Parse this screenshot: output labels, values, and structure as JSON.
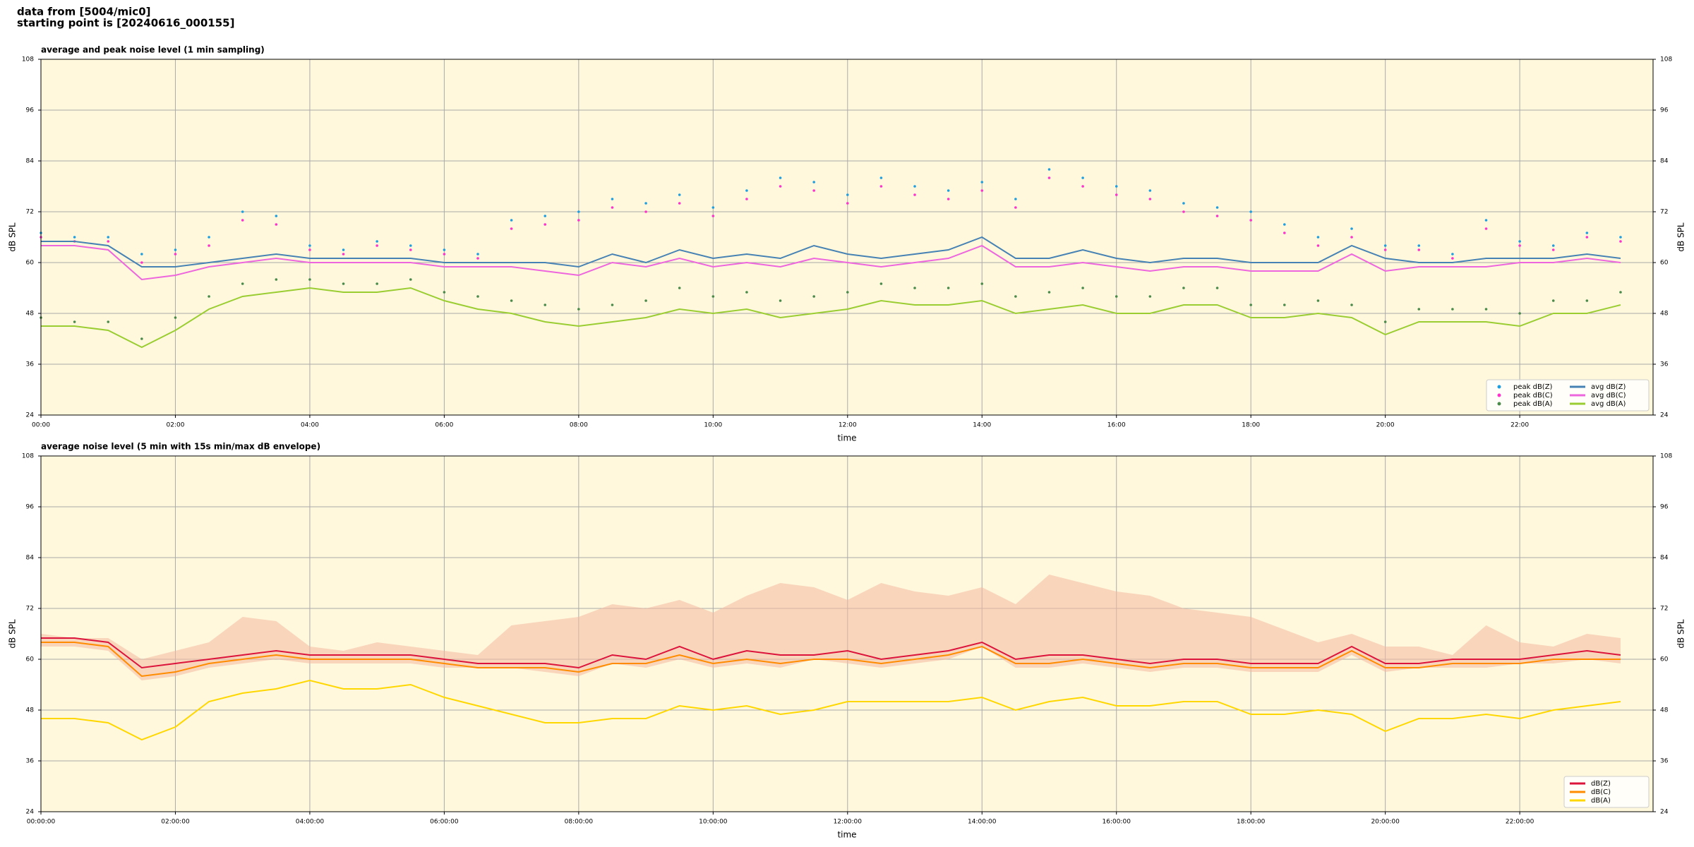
{
  "header": {
    "line1": "data from [5004/mic0]",
    "line2": "starting point is [20240616_000155]"
  },
  "chart_data": [
    {
      "type": "line",
      "title": "average and peak noise level (1 min sampling)",
      "xlabel": "time",
      "ylabel": "dB SPL",
      "x": [
        "00:00",
        "00:30",
        "01:00",
        "01:30",
        "02:00",
        "02:30",
        "03:00",
        "03:30",
        "04:00",
        "04:30",
        "05:00",
        "05:30",
        "06:00",
        "06:30",
        "07:00",
        "07:30",
        "08:00",
        "08:30",
        "09:00",
        "09:30",
        "10:00",
        "10:30",
        "11:00",
        "11:30",
        "12:00",
        "12:30",
        "13:00",
        "13:30",
        "14:00",
        "14:30",
        "15:00",
        "15:30",
        "16:00",
        "16:30",
        "17:00",
        "17:30",
        "18:00",
        "18:30",
        "19:00",
        "19:30",
        "20:00",
        "20:30",
        "21:00",
        "21:30",
        "22:00",
        "22:30",
        "23:00",
        "23:30"
      ],
      "xlim": [
        "00:00",
        "23:59"
      ],
      "xticks": [
        "00:00",
        "02:00",
        "04:00",
        "06:00",
        "08:00",
        "10:00",
        "12:00",
        "14:00",
        "16:00",
        "18:00",
        "20:00",
        "22:00"
      ],
      "ylim": [
        24,
        108
      ],
      "yticks": [
        24,
        36,
        48,
        60,
        72,
        84,
        96,
        108
      ],
      "grid": true,
      "legend": "lower right",
      "background": "#fff8dc",
      "series": [
        {
          "name": "peak dB(Z)",
          "style": "scatter",
          "color": "#1f9fe0",
          "values": [
            67,
            66,
            66,
            62,
            63,
            66,
            72,
            71,
            64,
            63,
            65,
            64,
            63,
            62,
            70,
            71,
            72,
            75,
            74,
            76,
            73,
            77,
            80,
            79,
            76,
            80,
            78,
            77,
            79,
            75,
            82,
            80,
            78,
            77,
            74,
            73,
            72,
            69,
            66,
            68,
            64,
            64,
            62,
            70,
            65,
            64,
            67,
            66
          ]
        },
        {
          "name": "peak dB(C)",
          "style": "scatter",
          "color": "#ff33cc",
          "values": [
            66,
            65,
            65,
            60,
            62,
            64,
            70,
            69,
            63,
            62,
            64,
            63,
            62,
            61,
            68,
            69,
            70,
            73,
            72,
            74,
            71,
            75,
            78,
            77,
            74,
            78,
            76,
            75,
            77,
            73,
            80,
            78,
            76,
            75,
            72,
            71,
            70,
            67,
            64,
            66,
            63,
            63,
            61,
            68,
            64,
            63,
            66,
            65
          ]
        },
        {
          "name": "peak dB(A)",
          "style": "scatter",
          "color": "#4a8a4a",
          "values": [
            47,
            46,
            46,
            42,
            47,
            52,
            55,
            56,
            56,
            55,
            55,
            56,
            53,
            52,
            51,
            50,
            49,
            50,
            51,
            54,
            52,
            53,
            51,
            52,
            53,
            55,
            54,
            54,
            55,
            52,
            53,
            54,
            52,
            52,
            54,
            54,
            50,
            50,
            51,
            50,
            46,
            49,
            49,
            49,
            48,
            51,
            51,
            53
          ]
        },
        {
          "name": "avg dB(Z)",
          "style": "line",
          "color": "#4682b4",
          "values": [
            65,
            65,
            64,
            59,
            59,
            60,
            61,
            62,
            61,
            61,
            61,
            61,
            60,
            60,
            60,
            60,
            59,
            62,
            60,
            63,
            61,
            62,
            61,
            64,
            62,
            61,
            62,
            63,
            66,
            61,
            61,
            63,
            61,
            60,
            61,
            61,
            60,
            60,
            60,
            64,
            61,
            60,
            60,
            61,
            61,
            61,
            62,
            61
          ]
        },
        {
          "name": "avg dB(C)",
          "style": "line",
          "color": "#ee66dd",
          "values": [
            64,
            64,
            63,
            56,
            57,
            59,
            60,
            61,
            60,
            60,
            60,
            60,
            59,
            59,
            59,
            58,
            57,
            60,
            59,
            61,
            59,
            60,
            59,
            61,
            60,
            59,
            60,
            61,
            64,
            59,
            59,
            60,
            59,
            58,
            59,
            59,
            58,
            58,
            58,
            62,
            58,
            59,
            59,
            59,
            60,
            60,
            61,
            60
          ]
        },
        {
          "name": "avg dB(A)",
          "style": "line",
          "color": "#9acd32",
          "values": [
            45,
            45,
            44,
            40,
            44,
            49,
            52,
            53,
            54,
            53,
            53,
            54,
            51,
            49,
            48,
            46,
            45,
            46,
            47,
            49,
            48,
            49,
            47,
            48,
            49,
            51,
            50,
            50,
            51,
            48,
            49,
            50,
            48,
            48,
            50,
            50,
            47,
            47,
            48,
            47,
            43,
            46,
            46,
            46,
            45,
            48,
            48,
            50
          ]
        }
      ]
    },
    {
      "type": "line",
      "title": "average noise level (5 min with 15s min/max dB envelope)",
      "xlabel": "time",
      "ylabel": "dB SPL",
      "x": [
        "00:00:00",
        "00:30:00",
        "01:00:00",
        "01:30:00",
        "02:00:00",
        "02:30:00",
        "03:00:00",
        "03:30:00",
        "04:00:00",
        "04:30:00",
        "05:00:00",
        "05:30:00",
        "06:00:00",
        "06:30:00",
        "07:00:00",
        "07:30:00",
        "08:00:00",
        "08:30:00",
        "09:00:00",
        "09:30:00",
        "10:00:00",
        "10:30:00",
        "11:00:00",
        "11:30:00",
        "12:00:00",
        "12:30:00",
        "13:00:00",
        "13:30:00",
        "14:00:00",
        "14:30:00",
        "15:00:00",
        "15:30:00",
        "16:00:00",
        "16:30:00",
        "17:00:00",
        "17:30:00",
        "18:00:00",
        "18:30:00",
        "19:00:00",
        "19:30:00",
        "20:00:00",
        "20:30:00",
        "21:00:00",
        "21:30:00",
        "22:00:00",
        "22:30:00",
        "23:00:00",
        "23:30:00"
      ],
      "xlim": [
        "00:00:00",
        "23:59:00"
      ],
      "xticks": [
        "00:00:00",
        "02:00:00",
        "04:00:00",
        "06:00:00",
        "08:00:00",
        "10:00:00",
        "12:00:00",
        "14:00:00",
        "16:00:00",
        "18:00:00",
        "20:00:00",
        "22:00:00"
      ],
      "ylim": [
        24,
        108
      ],
      "yticks": [
        24,
        36,
        48,
        60,
        72,
        84,
        96,
        108
      ],
      "grid": true,
      "legend": "lower right",
      "background": "#fff8dc",
      "envelope": {
        "color": "#f4b8a0",
        "high": [
          66,
          65,
          65,
          60,
          62,
          64,
          70,
          69,
          63,
          62,
          64,
          63,
          62,
          61,
          68,
          69,
          70,
          73,
          72,
          74,
          71,
          75,
          78,
          77,
          74,
          78,
          76,
          75,
          77,
          73,
          80,
          78,
          76,
          75,
          72,
          71,
          70,
          67,
          64,
          66,
          63,
          63,
          61,
          68,
          64,
          63,
          66,
          65
        ],
        "low": [
          63,
          63,
          62,
          55,
          56,
          58,
          59,
          60,
          59,
          59,
          59,
          59,
          58,
          58,
          58,
          57,
          56,
          59,
          58,
          60,
          58,
          59,
          58,
          60,
          59,
          58,
          59,
          60,
          63,
          58,
          58,
          59,
          58,
          57,
          58,
          58,
          57,
          57,
          57,
          61,
          57,
          58,
          58,
          58,
          59,
          59,
          60,
          59
        ]
      },
      "series": [
        {
          "name": "dB(Z)",
          "style": "line",
          "color": "#dc143c",
          "values": [
            65,
            65,
            64,
            58,
            59,
            60,
            61,
            62,
            61,
            61,
            61,
            61,
            60,
            59,
            59,
            59,
            58,
            61,
            60,
            63,
            60,
            62,
            61,
            61,
            62,
            60,
            61,
            62,
            64,
            60,
            61,
            61,
            60,
            59,
            60,
            60,
            59,
            59,
            59,
            63,
            59,
            59,
            60,
            60,
            60,
            61,
            62,
            61
          ]
        },
        {
          "name": "dB(C)",
          "style": "line",
          "color": "#ff8c00",
          "values": [
            64,
            64,
            63,
            56,
            57,
            59,
            60,
            61,
            60,
            60,
            60,
            60,
            59,
            58,
            58,
            58,
            57,
            59,
            59,
            61,
            59,
            60,
            59,
            60,
            60,
            59,
            60,
            61,
            63,
            59,
            59,
            60,
            59,
            58,
            59,
            59,
            58,
            58,
            58,
            62,
            58,
            58,
            59,
            59,
            59,
            60,
            60,
            60
          ]
        },
        {
          "name": "dB(A)",
          "style": "line",
          "color": "#ffd700",
          "values": [
            46,
            46,
            45,
            41,
            44,
            50,
            52,
            53,
            55,
            53,
            53,
            54,
            51,
            49,
            47,
            45,
            45,
            46,
            46,
            49,
            48,
            49,
            47,
            48,
            50,
            50,
            50,
            50,
            51,
            48,
            50,
            51,
            49,
            49,
            50,
            50,
            47,
            47,
            48,
            47,
            43,
            46,
            46,
            47,
            46,
            48,
            49,
            50
          ]
        }
      ]
    }
  ]
}
